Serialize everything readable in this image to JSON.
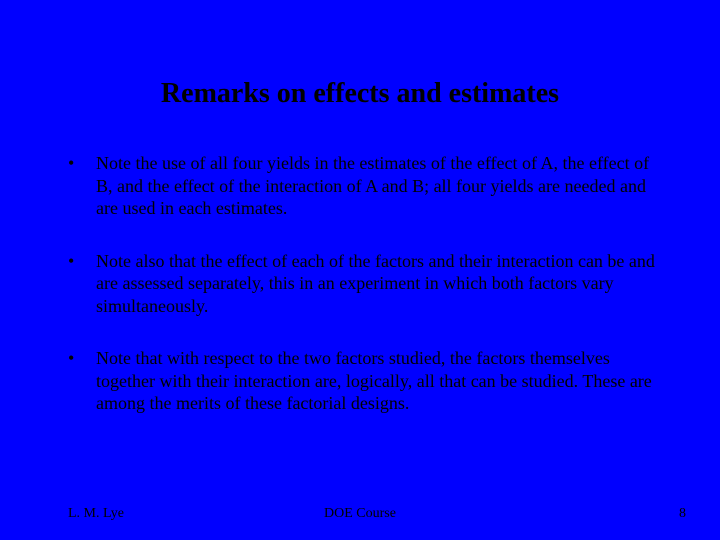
{
  "slide": {
    "title": "Remarks on effects and estimates",
    "bullets": [
      "Note the use of all four yields in the estimates of the effect of A, the effect of B, and the effect of the interaction of A and B; all four yields are needed and are used in each estimates.",
      "Note also that the effect of each of the factors and their interaction can be and are assessed separately, this in an experiment in which both factors vary simultaneously.",
      "Note that with respect to the two factors studied, the factors themselves together with their interaction are, logically, all that can be studied. These are among the merits of these factorial designs."
    ],
    "bullet_marker": "•"
  },
  "footer": {
    "author": "L. M. Lye",
    "course": "DOE Course",
    "page_number": "8"
  },
  "style": {
    "background_color": "#0000ff",
    "text_color": "#000000",
    "title_fontsize": 28,
    "body_fontsize": 18,
    "footer_fontsize": 14,
    "font_family": "Times New Roman"
  }
}
